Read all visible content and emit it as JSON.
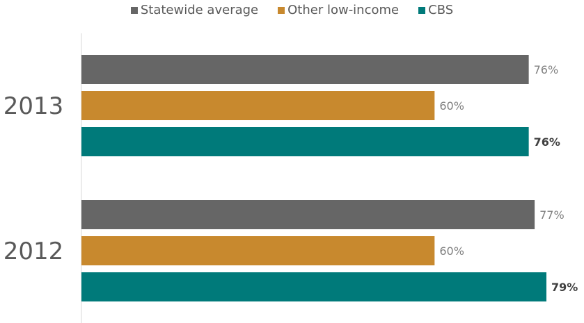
{
  "chart_data": {
    "type": "bar",
    "orientation": "horizontal",
    "categories": [
      "2013",
      "2012"
    ],
    "series": [
      {
        "name": "Statewide average",
        "color": "#666666",
        "values": [
          76,
          77
        ],
        "label_bold": false
      },
      {
        "name": "Other low-income",
        "color": "#C8892E",
        "values": [
          60,
          60
        ],
        "label_bold": false
      },
      {
        "name": "CBS",
        "color": "#007A7A",
        "values": [
          76,
          79
        ],
        "label_bold": true
      }
    ],
    "data_labels": [
      [
        "76%",
        "60%",
        "76%"
      ],
      [
        "77%",
        "60%",
        "79%"
      ]
    ],
    "xlim": [
      0,
      79
    ],
    "legend_position": "top",
    "grid": false
  }
}
